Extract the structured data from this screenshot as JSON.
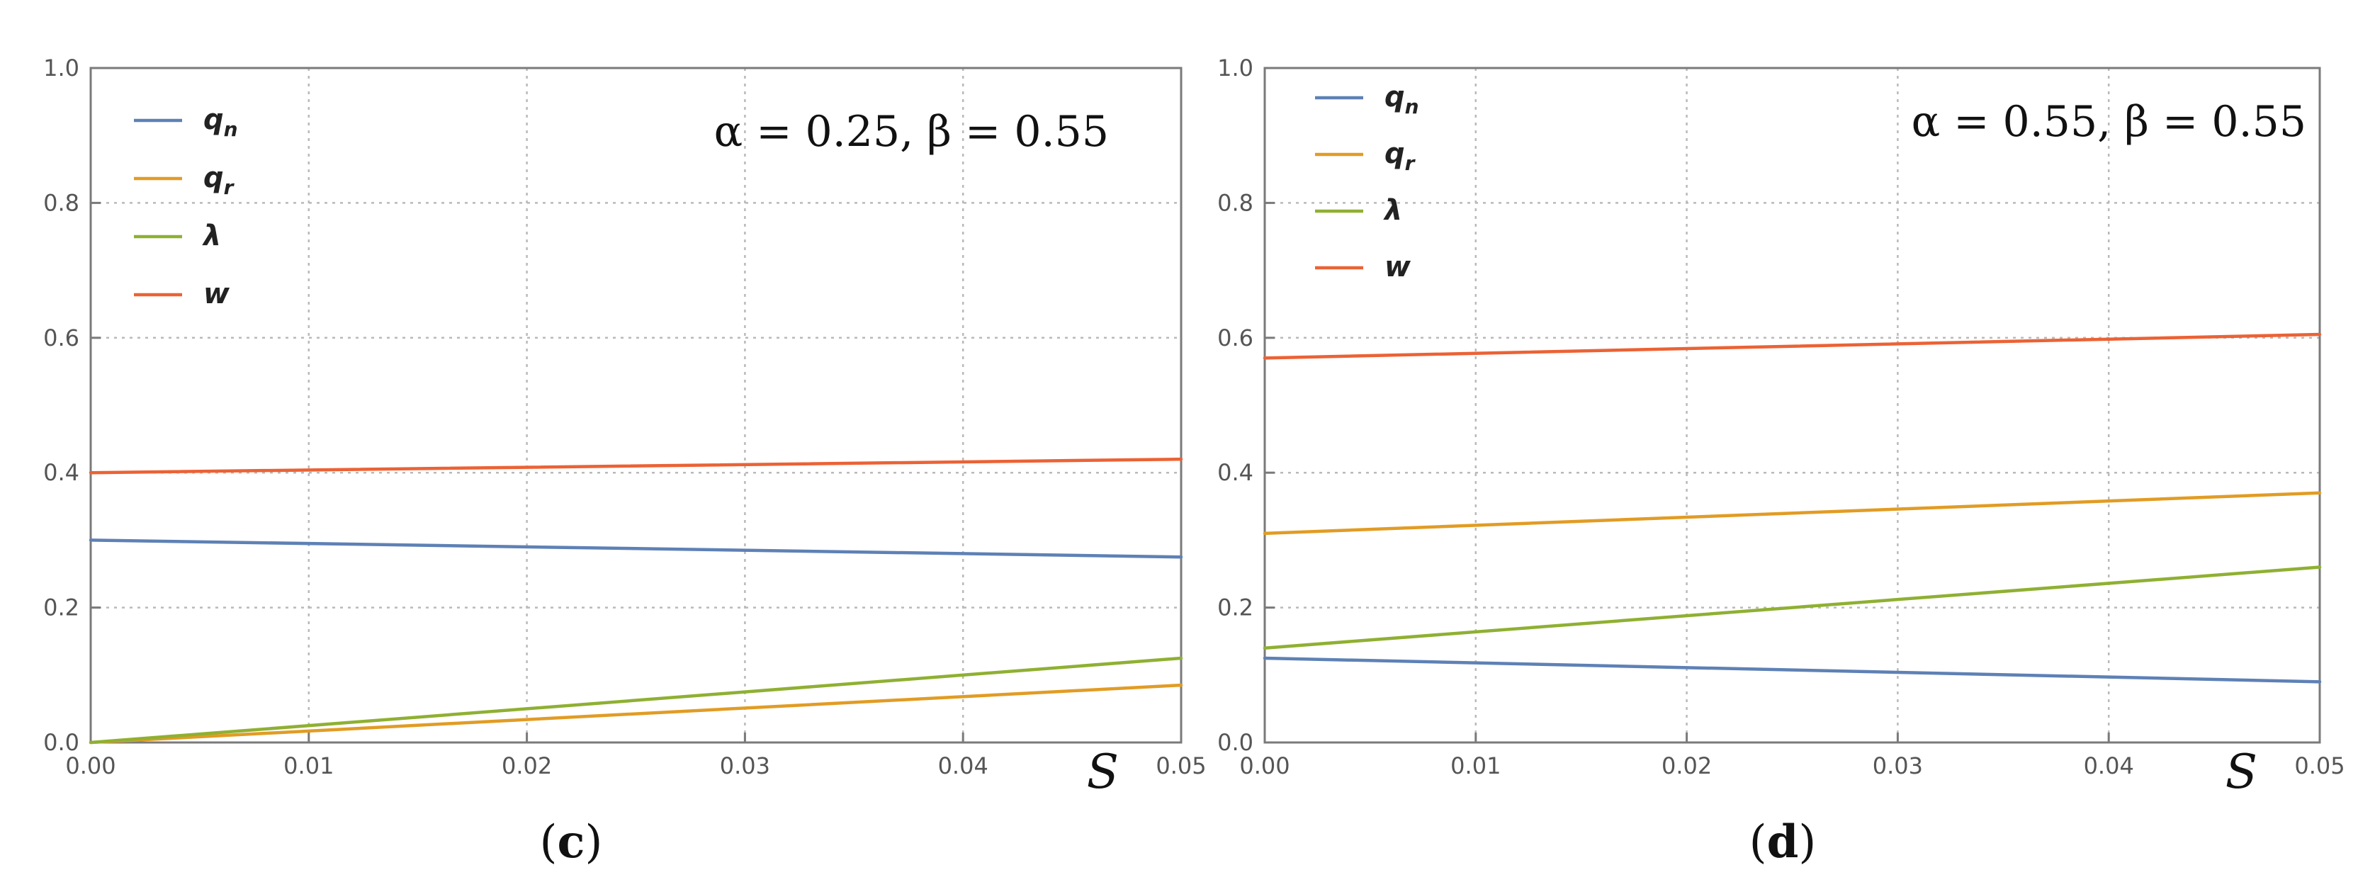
{
  "chart_data": [
    {
      "type": "line",
      "panel_label": "(c)",
      "annotation": "α = 0.25, β = 0.55",
      "xlabel": "S",
      "ylabel": "",
      "xlim": [
        0,
        0.05
      ],
      "ylim": [
        0,
        1.0
      ],
      "x_ticks": [
        "0.00",
        "0.01",
        "0.02",
        "0.03",
        "0.04",
        "0.05"
      ],
      "y_ticks": [
        "0.0",
        "0.2",
        "0.4",
        "0.6",
        "0.8",
        "1.0"
      ],
      "grid": true,
      "legend_position": "top-left",
      "x": [
        0.0,
        0.05
      ],
      "series": [
        {
          "name": "q",
          "subscript": "n",
          "color": "#5e81b5",
          "values": [
            0.3,
            0.275
          ]
        },
        {
          "name": "q",
          "subscript": "r",
          "color": "#e19c24",
          "values": [
            0.0,
            0.085
          ]
        },
        {
          "name": "λ",
          "subscript": "",
          "color": "#8fb032",
          "values": [
            0.0,
            0.125
          ]
        },
        {
          "name": "w",
          "subscript": "",
          "color": "#eb6235",
          "values": [
            0.4,
            0.42
          ]
        }
      ]
    },
    {
      "type": "line",
      "panel_label": "(d)",
      "annotation": "α = 0.55, β = 0.55",
      "xlabel": "S",
      "ylabel": "",
      "xlim": [
        0,
        0.05
      ],
      "ylim": [
        0,
        1.0
      ],
      "x_ticks": [
        "0.00",
        "0.01",
        "0.02",
        "0.03",
        "0.04",
        "0.05"
      ],
      "y_ticks": [
        "0.0",
        "0.2",
        "0.4",
        "0.6",
        "0.8",
        "1.0"
      ],
      "grid": true,
      "legend_position": "top-left",
      "x": [
        0.0,
        0.05
      ],
      "series": [
        {
          "name": "q",
          "subscript": "n",
          "color": "#5e81b5",
          "values": [
            0.125,
            0.09
          ]
        },
        {
          "name": "q",
          "subscript": "r",
          "color": "#e19c24",
          "values": [
            0.31,
            0.37
          ]
        },
        {
          "name": "λ",
          "subscript": "",
          "color": "#8fb032",
          "values": [
            0.14,
            0.26
          ]
        },
        {
          "name": "w",
          "subscript": "",
          "color": "#eb6235",
          "values": [
            0.57,
            0.605
          ]
        }
      ]
    }
  ]
}
